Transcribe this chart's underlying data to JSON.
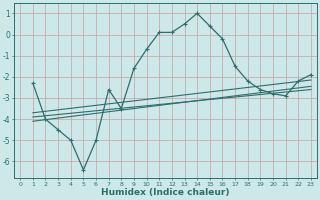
{
  "title": "",
  "xlabel": "Humidex (Indice chaleur)",
  "ylabel": "",
  "bg_color": "#cce8e8",
  "line_color": "#2e6e6e",
  "grid_color": "#c8a0a0",
  "xlim": [
    -0.5,
    23.5
  ],
  "ylim": [
    -6.8,
    1.5
  ],
  "xticks": [
    0,
    1,
    2,
    3,
    4,
    5,
    6,
    7,
    8,
    9,
    10,
    11,
    12,
    13,
    14,
    15,
    16,
    17,
    18,
    19,
    20,
    21,
    22,
    23
  ],
  "yticks": [
    1,
    0,
    -1,
    -2,
    -3,
    -4,
    -5,
    -6
  ],
  "line1_x": [
    1,
    2,
    3,
    4,
    5,
    6,
    7,
    8,
    9,
    10,
    11,
    12,
    13,
    14,
    15,
    16,
    17,
    18,
    19,
    20,
    21,
    22,
    23
  ],
  "line1_y": [
    -2.3,
    -4.0,
    -4.5,
    -5.0,
    -6.4,
    -5.0,
    -2.6,
    -3.5,
    -1.6,
    -0.7,
    0.1,
    0.1,
    0.5,
    1.0,
    0.4,
    -0.2,
    -1.5,
    -2.2,
    -2.6,
    -2.8,
    -2.9,
    -2.2,
    -1.9
  ],
  "line3_x": [
    1,
    23
  ],
  "line3_y": [
    -3.7,
    -2.15
  ],
  "line4_x": [
    1,
    23
  ],
  "line4_y": [
    -4.1,
    -2.45
  ],
  "line5_x": [
    1,
    23
  ],
  "line5_y": [
    -3.9,
    -2.6
  ],
  "marker": "+"
}
